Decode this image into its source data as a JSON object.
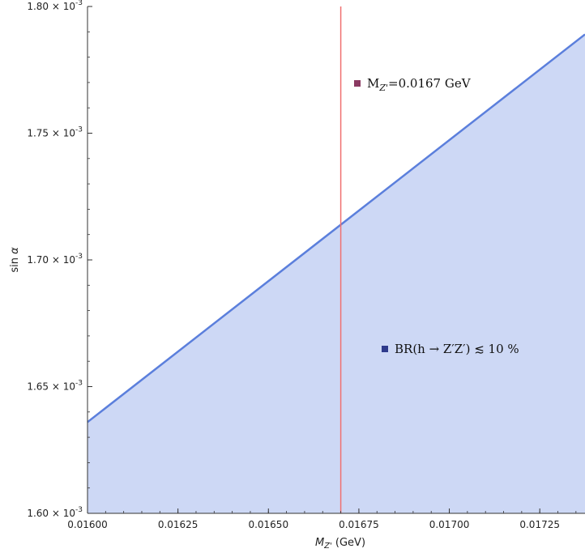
{
  "chart_data": {
    "type": "area",
    "xlabel": "M_{Z'} (GeV)",
    "ylabel": "sin α",
    "xlim": [
      0.016,
      0.017375
    ],
    "ylim": [
      0.0016,
      0.0018
    ],
    "x_ticks": [
      {
        "value": 0.016,
        "label": "0.01600"
      },
      {
        "value": 0.01625,
        "label": "0.01625"
      },
      {
        "value": 0.0165,
        "label": "0.01650"
      },
      {
        "value": 0.01675,
        "label": "0.01675"
      },
      {
        "value": 0.017,
        "label": "0.01700"
      },
      {
        "value": 0.01725,
        "label": "0.01725"
      }
    ],
    "y_ticks": [
      {
        "value": 0.0016,
        "label": "1.60",
        "exp": "-3"
      },
      {
        "value": 0.00165,
        "label": "1.65",
        "exp": "-3"
      },
      {
        "value": 0.0017,
        "label": "1.70",
        "exp": "-3"
      },
      {
        "value": 0.00175,
        "label": "1.75",
        "exp": "-3"
      },
      {
        "value": 0.0018,
        "label": "1.80",
        "exp": "-3"
      }
    ],
    "series": [
      {
        "name": "BR(h → Z′Z′) ≲ 10 %",
        "x": [
          0.016,
          0.017375
        ],
        "y": [
          0.001636,
          0.001789
        ],
        "color": "#5b7fdc",
        "fill_color": "#cdd8f5"
      }
    ],
    "vertical_line": {
      "x": 0.0167,
      "color": "#f07070",
      "label_main": "M",
      "label_sub": "Z'",
      "label_value": "=0.0167 GeV",
      "marker_color": "#8b3a62"
    },
    "legend_marker_color": "#2e3a8c",
    "grid": false
  }
}
